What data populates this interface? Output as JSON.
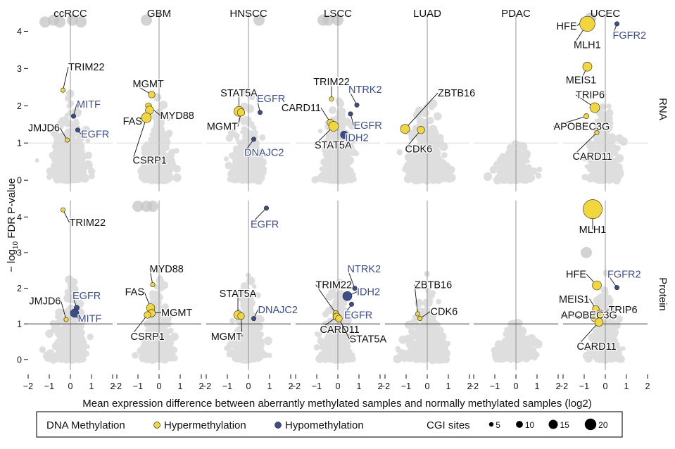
{
  "chart_data": {
    "type": "scatter",
    "title": "",
    "xlabel": "Mean expression difference between aberrantly methylated samples and normally methylated samples (log2)",
    "ylabel": "− log10 FDR P-value",
    "ylabel_parts": {
      "prefix": "− log",
      "sub": "10",
      "suffix": " FDR P-value"
    },
    "xlim": [
      -2,
      2
    ],
    "ylim": [
      -0.3,
      4.5
    ],
    "x_ticks": [
      "−2",
      "−1",
      "0",
      "1",
      "2"
    ],
    "y_ticks": [
      "0",
      "1",
      "2",
      "3",
      "4"
    ],
    "threshold_y": 1,
    "columns": [
      "ccRCC",
      "GBM",
      "HNSCC",
      "LSCC",
      "LUAD",
      "PDAC",
      "UCEC"
    ],
    "rows": [
      "RNA",
      "Protein"
    ],
    "colors": {
      "hyper": "#f2d73c",
      "hypo": "#3b4e8c",
      "background": "#c4c4c4",
      "label_hyper": "#111111",
      "label_hypo": "#3b4e8c",
      "threshold": "#bdbdbd",
      "zero_line": "#8a8a8a"
    },
    "legend": {
      "position": "bottom",
      "title": "DNA Methylation",
      "entries": [
        {
          "label": "Hypermethylation",
          "type": "hyper"
        },
        {
          "label": "Hypomethylation",
          "type": "hypo"
        }
      ],
      "size_title": "CGI sites",
      "sizes": [
        5,
        10,
        15,
        20
      ]
    },
    "highlights": [
      {
        "panel": "RNA",
        "cancer": "ccRCC",
        "gene": "TRIM22",
        "x": -0.35,
        "y": 2.42,
        "type": "hyper",
        "cgi": 1
      },
      {
        "panel": "RNA",
        "cancer": "ccRCC",
        "gene": "MITF",
        "x": 0.15,
        "y": 1.72,
        "type": "hypo",
        "cgi": 1
      },
      {
        "panel": "RNA",
        "cancer": "ccRCC",
        "gene": "EGFR",
        "x": 0.35,
        "y": 1.35,
        "type": "hypo",
        "cgi": 1
      },
      {
        "panel": "RNA",
        "cancer": "ccRCC",
        "gene": "JMJD6",
        "x": -0.15,
        "y": 1.08,
        "type": "hyper",
        "cgi": 1
      },
      {
        "panel": "RNA",
        "cancer": "GBM",
        "gene": "MGMT",
        "x": -0.35,
        "y": 2.3,
        "type": "hyper",
        "cgi": 4
      },
      {
        "panel": "RNA",
        "cancer": "GBM",
        "gene": "MYD88",
        "x": -0.5,
        "y": 2.0,
        "type": "hyper",
        "cgi": 3
      },
      {
        "panel": "RNA",
        "cancer": "GBM",
        "gene": "FAS",
        "x": -0.45,
        "y": 1.88,
        "type": "hyper",
        "cgi": 6
      },
      {
        "panel": "RNA",
        "cancer": "GBM",
        "gene": "CSRP1",
        "x": -0.6,
        "y": 1.68,
        "type": "hyper",
        "cgi": 8
      },
      {
        "panel": "RNA",
        "cancer": "HNSCC",
        "gene": "STAT5A",
        "x": -0.45,
        "y": 1.85,
        "type": "hyper",
        "cgi": 8
      },
      {
        "panel": "RNA",
        "cancer": "HNSCC",
        "gene": "MGMT",
        "x": -0.35,
        "y": 1.82,
        "type": "hyper",
        "cgi": 5
      },
      {
        "panel": "RNA",
        "cancer": "HNSCC",
        "gene": "EGFR",
        "x": 0.55,
        "y": 1.82,
        "type": "hypo",
        "cgi": 1
      },
      {
        "panel": "RNA",
        "cancer": "HNSCC",
        "gene": "DNAJC2",
        "x": 0.25,
        "y": 1.1,
        "type": "hypo",
        "cgi": 1
      },
      {
        "panel": "RNA",
        "cancer": "LSCC",
        "gene": "TRIM22",
        "x": -0.3,
        "y": 2.18,
        "type": "hyper",
        "cgi": 1
      },
      {
        "panel": "RNA",
        "cancer": "LSCC",
        "gene": "NTRK2",
        "x": 0.9,
        "y": 2.02,
        "type": "hypo",
        "cgi": 1
      },
      {
        "panel": "RNA",
        "cancer": "LSCC",
        "gene": "EGFR",
        "x": 0.6,
        "y": 1.78,
        "type": "hypo",
        "cgi": 1
      },
      {
        "panel": "RNA",
        "cancer": "LSCC",
        "gene": "CARD11",
        "x": -0.35,
        "y": 1.55,
        "type": "hyper",
        "cgi": 4
      },
      {
        "panel": "RNA",
        "cancer": "LSCC",
        "gene": "STAT5A",
        "x": -0.2,
        "y": 1.45,
        "type": "hyper",
        "cgi": 8
      },
      {
        "panel": "RNA",
        "cancer": "LSCC",
        "gene": "IDH2",
        "x": 0.3,
        "y": 1.22,
        "type": "hypo",
        "cgi": 5
      },
      {
        "panel": "RNA",
        "cancer": "LUAD",
        "gene": "ZBTB16",
        "x": -1.05,
        "y": 1.38,
        "type": "hyper",
        "cgi": 7
      },
      {
        "panel": "RNA",
        "cancer": "LUAD",
        "gene": "CDK6",
        "x": -0.3,
        "y": 1.35,
        "type": "hyper",
        "cgi": 5
      },
      {
        "panel": "RNA",
        "cancer": "UCEC",
        "gene": "HFE",
        "x": -1.05,
        "y": 4.28,
        "type": "hyper",
        "cgi": 2
      },
      {
        "panel": "RNA",
        "cancer": "UCEC",
        "gene": "MLH1",
        "x": -0.85,
        "y": 4.2,
        "type": "hyper",
        "cgi": 15
      },
      {
        "panel": "RNA",
        "cancer": "UCEC",
        "gene": "FGFR2",
        "x": 0.55,
        "y": 4.2,
        "type": "hypo",
        "cgi": 1
      },
      {
        "panel": "RNA",
        "cancer": "UCEC",
        "gene": "MEIS1",
        "x": -0.85,
        "y": 3.05,
        "type": "hyper",
        "cgi": 7
      },
      {
        "panel": "RNA",
        "cancer": "UCEC",
        "gene": "TRIP6",
        "x": -0.5,
        "y": 1.95,
        "type": "hyper",
        "cgi": 8
      },
      {
        "panel": "RNA",
        "cancer": "UCEC",
        "gene": "APOBEC3G",
        "x": -0.9,
        "y": 1.72,
        "type": "hyper",
        "cgi": 2
      },
      {
        "panel": "RNA",
        "cancer": "UCEC",
        "gene": "CARD11",
        "x": -0.4,
        "y": 1.28,
        "type": "hyper",
        "cgi": 1
      },
      {
        "panel": "Protein",
        "cancer": "ccRCC",
        "gene": "TRIM22",
        "x": -0.35,
        "y": 4.2,
        "type": "hyper",
        "cgi": 1
      },
      {
        "panel": "Protein",
        "cancer": "ccRCC",
        "gene": "EGFR",
        "x": 0.3,
        "y": 1.45,
        "type": "hypo",
        "cgi": 2
      },
      {
        "panel": "Protein",
        "cancer": "ccRCC",
        "gene": "MITF",
        "x": 0.2,
        "y": 1.3,
        "type": "hypo",
        "cgi": 6
      },
      {
        "panel": "Protein",
        "cancer": "ccRCC",
        "gene": "JMJD6",
        "x": -0.2,
        "y": 1.12,
        "type": "hyper",
        "cgi": 1
      },
      {
        "panel": "Protein",
        "cancer": "GBM",
        "gene": "MYD88",
        "x": -0.3,
        "y": 2.1,
        "type": "hyper",
        "cgi": 1
      },
      {
        "panel": "Protein",
        "cancer": "GBM",
        "gene": "FAS",
        "x": -0.4,
        "y": 1.45,
        "type": "hyper",
        "cgi": 6
      },
      {
        "panel": "Protein",
        "cancer": "GBM",
        "gene": "MGMT",
        "x": -0.35,
        "y": 1.3,
        "type": "hyper",
        "cgi": 5
      },
      {
        "panel": "Protein",
        "cancer": "GBM",
        "gene": "CSRP1",
        "x": -0.55,
        "y": 1.25,
        "type": "hyper",
        "cgi": 4
      },
      {
        "panel": "Protein",
        "cancer": "HNSCC",
        "gene": "EGFR",
        "x": 0.85,
        "y": 4.25,
        "type": "hypo",
        "cgi": 1
      },
      {
        "panel": "Protein",
        "cancer": "HNSCC",
        "gene": "STAT5A",
        "x": -0.5,
        "y": 1.25,
        "type": "hyper",
        "cgi": 6
      },
      {
        "panel": "Protein",
        "cancer": "HNSCC",
        "gene": "MGMT",
        "x": -0.35,
        "y": 1.22,
        "type": "hyper",
        "cgi": 4
      },
      {
        "panel": "Protein",
        "cancer": "HNSCC",
        "gene": "DNAJC2",
        "x": 0.25,
        "y": 1.15,
        "type": "hypo",
        "cgi": 1
      },
      {
        "panel": "Protein",
        "cancer": "LSCC",
        "gene": "NTRK2",
        "x": 0.8,
        "y": 2.0,
        "type": "hypo",
        "cgi": 1
      },
      {
        "panel": "Protein",
        "cancer": "LSCC",
        "gene": "IDH2",
        "x": 0.45,
        "y": 1.78,
        "type": "hypo",
        "cgi": 7
      },
      {
        "panel": "Protein",
        "cancer": "LSCC",
        "gene": "EGFR",
        "x": 0.65,
        "y": 1.55,
        "type": "hypo",
        "cgi": 1
      },
      {
        "panel": "Protein",
        "cancer": "LSCC",
        "gene": "TRIM22",
        "x": -0.1,
        "y": 1.3,
        "type": "hyper",
        "cgi": 2
      },
      {
        "panel": "Protein",
        "cancer": "LSCC",
        "gene": "CARD11",
        "x": -0.05,
        "y": 1.2,
        "type": "hyper",
        "cgi": 5
      },
      {
        "panel": "Protein",
        "cancer": "LSCC",
        "gene": "STAT5A",
        "x": 0.05,
        "y": 1.15,
        "type": "hyper",
        "cgi": 4
      },
      {
        "panel": "Protein",
        "cancer": "LUAD",
        "gene": "ZBTB16",
        "x": -0.45,
        "y": 1.28,
        "type": "hyper",
        "cgi": 1
      },
      {
        "panel": "Protein",
        "cancer": "LUAD",
        "gene": "CDK6",
        "x": -0.35,
        "y": 1.15,
        "type": "hyper",
        "cgi": 1
      },
      {
        "panel": "Protein",
        "cancer": "UCEC",
        "gene": "MLH1",
        "x": -0.6,
        "y": 4.22,
        "type": "hyper",
        "cgi": 20
      },
      {
        "panel": "Protein",
        "cancer": "UCEC",
        "gene": "HFE",
        "x": -0.4,
        "y": 2.08,
        "type": "hyper",
        "cgi": 7
      },
      {
        "panel": "Protein",
        "cancer": "UCEC",
        "gene": "FGFR2",
        "x": 0.55,
        "y": 2.02,
        "type": "hypo",
        "cgi": 1
      },
      {
        "panel": "Protein",
        "cancer": "UCEC",
        "gene": "MEIS1",
        "x": -0.45,
        "y": 1.42,
        "type": "hyper",
        "cgi": 4
      },
      {
        "panel": "Protein",
        "cancer": "UCEC",
        "gene": "TRIP6",
        "x": -0.25,
        "y": 1.28,
        "type": "hyper",
        "cgi": 5
      },
      {
        "panel": "Protein",
        "cancer": "UCEC",
        "gene": "APOBEC3G",
        "x": -0.5,
        "y": 1.18,
        "type": "hyper",
        "cgi": 6
      },
      {
        "panel": "Protein",
        "cancer": "UCEC",
        "gene": "CARD11",
        "x": -0.3,
        "y": 1.05,
        "type": "hyper",
        "cgi": 6
      }
    ]
  }
}
